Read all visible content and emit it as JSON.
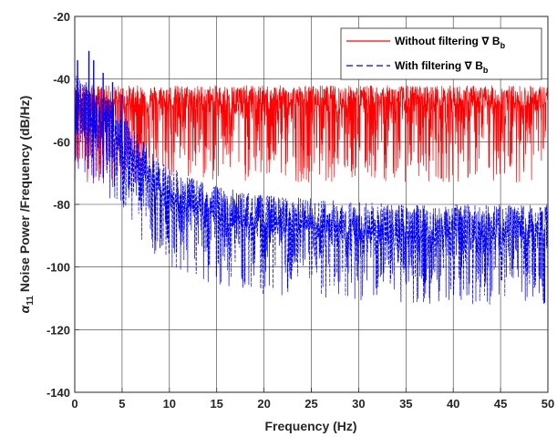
{
  "chart_data": {
    "type": "line",
    "title": "",
    "xlabel": "Frequency (Hz)",
    "ylabel": {
      "alpha": "α",
      "alpha_sub": "11",
      "text": " Noise Power /Frequency (dB/Hz)"
    },
    "xlim": [
      0,
      50
    ],
    "ylim": [
      -140,
      -20
    ],
    "xticks": [
      0,
      5,
      10,
      15,
      20,
      25,
      30,
      35,
      40,
      45,
      50
    ],
    "yticks": [
      -140,
      -120,
      -100,
      -80,
      -60,
      -40,
      -20
    ],
    "grid": true,
    "legend_position": "top-right",
    "series": [
      {
        "name": "Without filtering ∇ B",
        "name_sub": "b",
        "color": "#ff0000",
        "line_style": "solid",
        "x": [
          0,
          0.5,
          1,
          1.5,
          2,
          3,
          4,
          5,
          7,
          10,
          15,
          20,
          25,
          30,
          35,
          40,
          45,
          50
        ],
        "y": [
          -48,
          -48,
          -48,
          -48,
          -48,
          -48,
          -48,
          -48,
          -48,
          -48,
          -48,
          -48,
          -48,
          -48,
          -48,
          -48,
          -48,
          -48
        ],
        "spread_up": 6,
        "spread_down": 25,
        "description_note": "dense noise band roughly -43 to -75 dB/Hz across full range"
      },
      {
        "name": "With filtering ∇ B",
        "name_sub": "b",
        "color": "#0000ff",
        "line_style": "dashed",
        "x": [
          0,
          0.5,
          1,
          1.5,
          2,
          3,
          4,
          5,
          6,
          7,
          8,
          10,
          12,
          15,
          18,
          20,
          25,
          30,
          35,
          40,
          45,
          50
        ],
        "y": [
          -47,
          -50,
          -50,
          -50,
          -52,
          -54,
          -57,
          -60,
          -65,
          -69,
          -73,
          -78,
          -81,
          -84,
          -86,
          -87,
          -88,
          -89,
          -90,
          -90,
          -90,
          -90
        ],
        "spread_up": 10,
        "spread_down": 22
      }
    ],
    "peaks": [
      {
        "x": 1.5,
        "y": -31,
        "series": 1
      },
      {
        "x": 2.0,
        "y": -34,
        "series": 1
      },
      {
        "x": 0.3,
        "y": -34,
        "series": 1
      },
      {
        "x": 3.0,
        "y": -38,
        "series": 1
      },
      {
        "x": 4.0,
        "y": -41,
        "series": 1
      },
      {
        "x": 5.0,
        "y": -45,
        "series": 1
      }
    ]
  },
  "colors": {
    "axis": "#262626",
    "grid": "#262626",
    "background": "#ffffff"
  }
}
